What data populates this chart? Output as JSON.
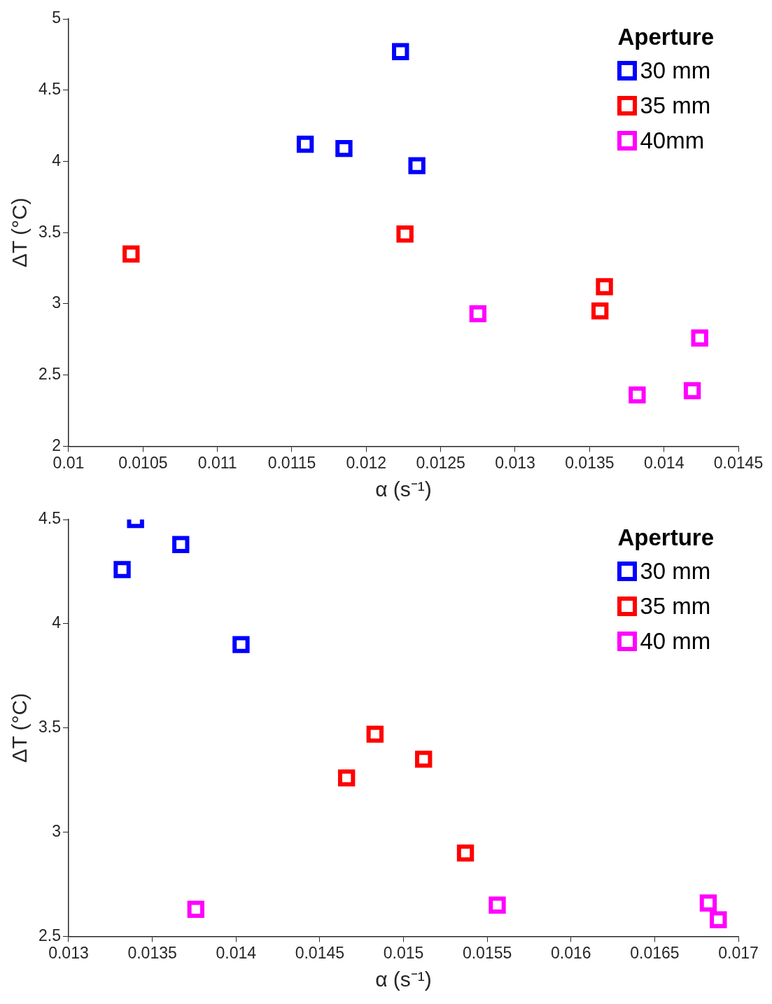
{
  "chart_data": [
    {
      "type": "scatter",
      "xlabel": "α (s⁻¹)",
      "ylabel": "ΔT (°C)",
      "legend_title": "Aperture",
      "legend": "top right",
      "marker": "square",
      "grid": false,
      "xlim": [
        0.01,
        0.0145
      ],
      "xticks": [
        0.01,
        0.0105,
        0.011,
        0.0115,
        0.012,
        0.0125,
        0.013,
        0.0135,
        0.014,
        0.0145
      ],
      "ylim": [
        2,
        5
      ],
      "yticks": [
        2,
        2.5,
        3,
        3.5,
        4,
        4.5,
        5
      ],
      "series": [
        {
          "name": "30 mm",
          "color": "#0000ff",
          "x": [
            0.01223,
            0.01159,
            0.01185,
            0.01234
          ],
          "values": [
            4.77,
            4.12,
            4.09,
            3.97
          ]
        },
        {
          "name": "35 mm",
          "color": "#ff0000",
          "x": [
            0.01042,
            0.01226,
            0.0136,
            0.01357
          ],
          "values": [
            3.35,
            3.49,
            3.12,
            2.95
          ]
        },
        {
          "name": "40mm",
          "color": "#ff00ff",
          "x": [
            0.01275,
            0.01382,
            0.01419,
            0.01424
          ],
          "values": [
            2.93,
            2.36,
            2.39,
            2.76
          ]
        }
      ]
    },
    {
      "type": "scatter",
      "xlabel": "α (s⁻¹)",
      "ylabel": "ΔT (°C)",
      "legend_title": "Aperture",
      "legend": "top right",
      "marker": "square",
      "grid": false,
      "xlim": [
        0.013,
        0.017
      ],
      "xticks": [
        0.013,
        0.0135,
        0.014,
        0.0145,
        0.015,
        0.0155,
        0.016,
        0.0165,
        0.017
      ],
      "ylim": [
        2.5,
        4.5
      ],
      "yticks": [
        2.5,
        3,
        3.5,
        4,
        4.5
      ],
      "series": [
        {
          "name": "30 mm",
          "color": "#0000ff",
          "x": [
            0.0134,
            0.01332,
            0.01367,
            0.01403
          ],
          "values": [
            4.5,
            4.26,
            4.38,
            3.9
          ]
        },
        {
          "name": "35 mm",
          "color": "#ff0000",
          "x": [
            0.01483,
            0.01466,
            0.01512,
            0.01537
          ],
          "values": [
            3.47,
            3.26,
            3.35,
            2.9
          ]
        },
        {
          "name": "40 mm",
          "color": "#ff00ff",
          "x": [
            0.01376,
            0.01556,
            0.01682,
            0.01688
          ],
          "values": [
            2.63,
            2.65,
            2.66,
            2.58
          ]
        }
      ]
    }
  ]
}
